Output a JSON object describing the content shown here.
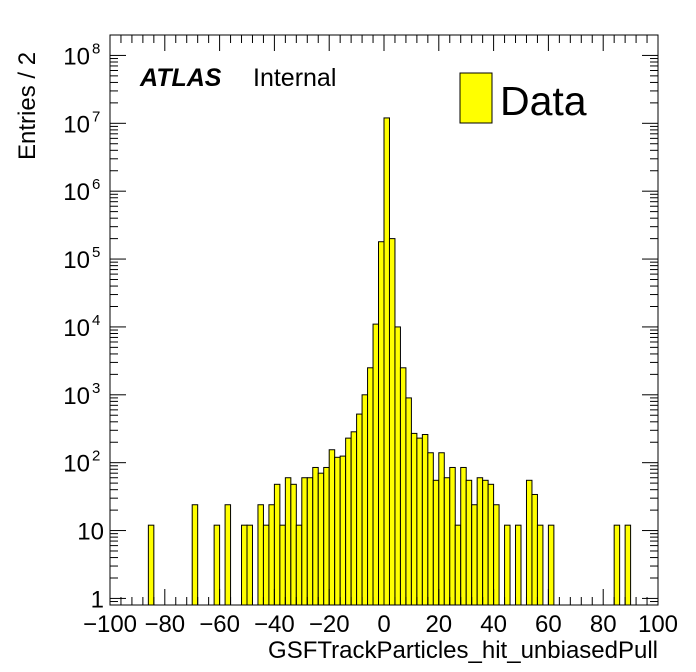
{
  "chart_data": {
    "type": "bar",
    "title": "",
    "xlabel": "GSFTrackParticles_hit_unbiasedPull",
    "ylabel": "Entries / 2",
    "xlim": [
      -100,
      100
    ],
    "ylim": [
      0.8,
      200000000
    ],
    "y_scale": "log",
    "bin_width": 2,
    "grid": false,
    "fill_color": "#ffff00",
    "edge_color": "#000000",
    "x_ticks": [
      -100,
      -80,
      -60,
      -40,
      -20,
      0,
      20,
      40,
      60,
      80,
      100
    ],
    "x_tick_labels": [
      "−100",
      "−80",
      "−60",
      "−40",
      "−20",
      "0",
      "20",
      "40",
      "60",
      "80",
      "100"
    ],
    "y_ticks": [
      {
        "value": 1,
        "base": "1",
        "exp": ""
      },
      {
        "value": 10,
        "base": "10",
        "exp": ""
      },
      {
        "value": 100,
        "base": "10",
        "exp": "2"
      },
      {
        "value": 1000,
        "base": "10",
        "exp": "3"
      },
      {
        "value": 10000,
        "base": "10",
        "exp": "4"
      },
      {
        "value": 100000,
        "base": "10",
        "exp": "5"
      },
      {
        "value": 1000000,
        "base": "10",
        "exp": "6"
      },
      {
        "value": 10000000,
        "base": "10",
        "exp": "7"
      },
      {
        "value": 100000000,
        "base": "10",
        "exp": "8"
      }
    ],
    "atlas_label": "ATLAS",
    "atlas_status": "Internal",
    "legend": {
      "label": "Data",
      "position": "top-right"
    },
    "bins": [
      {
        "x": -86,
        "y": 12
      },
      {
        "x": -70,
        "y": 24
      },
      {
        "x": -62,
        "y": 12
      },
      {
        "x": -58,
        "y": 24
      },
      {
        "x": -52,
        "y": 12
      },
      {
        "x": -50,
        "y": 12
      },
      {
        "x": -46,
        "y": 24
      },
      {
        "x": -44,
        "y": 12
      },
      {
        "x": -42,
        "y": 24
      },
      {
        "x": -40,
        "y": 48
      },
      {
        "x": -38,
        "y": 12
      },
      {
        "x": -36,
        "y": 60
      },
      {
        "x": -34,
        "y": 48
      },
      {
        "x": -32,
        "y": 12
      },
      {
        "x": -30,
        "y": 60
      },
      {
        "x": -28,
        "y": 60
      },
      {
        "x": -26,
        "y": 85
      },
      {
        "x": -24,
        "y": 70
      },
      {
        "x": -22,
        "y": 85
      },
      {
        "x": -20,
        "y": 155
      },
      {
        "x": -18,
        "y": 120
      },
      {
        "x": -16,
        "y": 125
      },
      {
        "x": -14,
        "y": 230
      },
      {
        "x": -12,
        "y": 285
      },
      {
        "x": -10,
        "y": 520
      },
      {
        "x": -8,
        "y": 1000
      },
      {
        "x": -6,
        "y": 2500
      },
      {
        "x": -4,
        "y": 11000
      },
      {
        "x": -2,
        "y": 180000
      },
      {
        "x": 0,
        "y": 12000000
      },
      {
        "x": 2,
        "y": 200000
      },
      {
        "x": 4,
        "y": 10000
      },
      {
        "x": 6,
        "y": 2500
      },
      {
        "x": 8,
        "y": 900
      },
      {
        "x": 10,
        "y": 270
      },
      {
        "x": 12,
        "y": 230
      },
      {
        "x": 14,
        "y": 260
      },
      {
        "x": 16,
        "y": 140
      },
      {
        "x": 18,
        "y": 55
      },
      {
        "x": 20,
        "y": 140
      },
      {
        "x": 22,
        "y": 60
      },
      {
        "x": 24,
        "y": 85
      },
      {
        "x": 26,
        "y": 12
      },
      {
        "x": 28,
        "y": 85
      },
      {
        "x": 30,
        "y": 55
      },
      {
        "x": 32,
        "y": 24
      },
      {
        "x": 34,
        "y": 60
      },
      {
        "x": 36,
        "y": 55
      },
      {
        "x": 38,
        "y": 48
      },
      {
        "x": 40,
        "y": 24
      },
      {
        "x": 44,
        "y": 12
      },
      {
        "x": 48,
        "y": 12
      },
      {
        "x": 52,
        "y": 55
      },
      {
        "x": 54,
        "y": 34
      },
      {
        "x": 56,
        "y": 12
      },
      {
        "x": 60,
        "y": 12
      },
      {
        "x": 84,
        "y": 12
      },
      {
        "x": 88,
        "y": 12
      }
    ]
  }
}
